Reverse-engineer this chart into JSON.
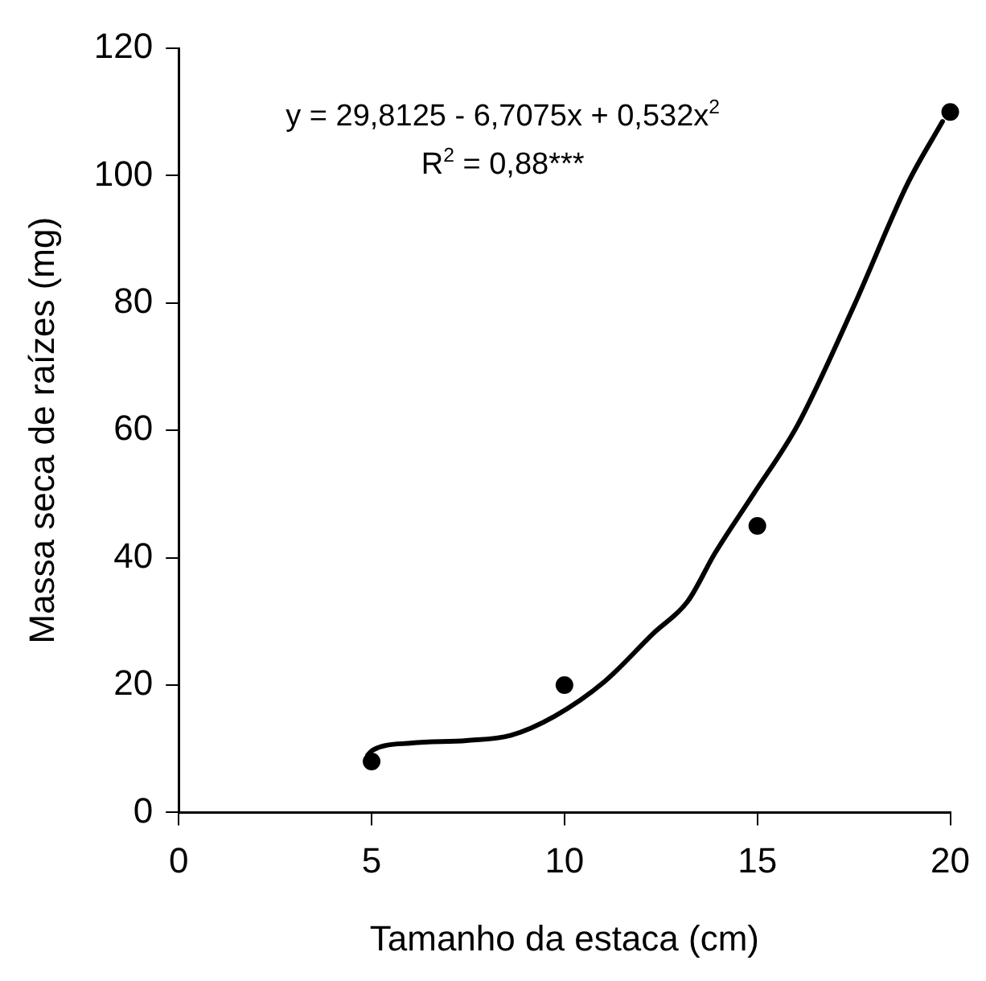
{
  "chart_data": {
    "type": "scatter",
    "xlabel": "Tamanho da estaca (cm)",
    "ylabel": "Massa seca de raízes (mg)",
    "annotations": [
      "y = 29,8125 - 6,7075x + 0,532x$^{2}$",
      "R$^{2}$ = 0,88***"
    ],
    "xlim": [
      0,
      20
    ],
    "xticks": [
      0,
      5,
      10,
      15,
      20
    ],
    "ylim": [
      0,
      120
    ],
    "yticks": [
      0,
      20,
      40,
      60,
      80,
      100,
      120
    ],
    "grid": false,
    "legend": false,
    "series": [
      {
        "color": "#000000",
        "marker": "circle",
        "x": [
          5,
          10,
          15,
          20
        ],
        "values": [
          8,
          20,
          45,
          110
        ]
      },
      {
        "type": "line",
        "color": "#000000",
        "marker": "none",
        "line_style": "solid",
        "x": [
          4.9,
          5.03,
          6.03,
          7.46,
          8.6,
          9.74,
          11.03,
          12.3,
          13.2,
          13.9,
          14.9,
          16.05,
          17.5,
          18.9,
          19.8
        ],
        "values": [
          9,
          9.8,
          10.9,
          11.3,
          12.1,
          15.1,
          20.5,
          28.1,
          33.2,
          40.7,
          50,
          60.9,
          79.5,
          98.8,
          108.5
        ]
      }
    ]
  }
}
